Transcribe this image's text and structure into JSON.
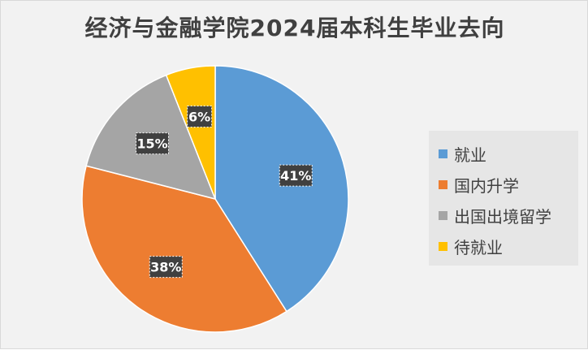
{
  "chart_data": {
    "type": "pie",
    "title": "经济与金融学院2024届本科生毕业去向",
    "categories": [
      "就业",
      "国内升学",
      "出国出境留学",
      "待就业"
    ],
    "values": [
      41,
      38,
      15,
      6
    ],
    "labels": [
      "41%",
      "38%",
      "15%",
      "6%"
    ],
    "colors": [
      "#5b9bd5",
      "#ed7d31",
      "#a5a5a5",
      "#ffc000"
    ],
    "legend_position": "right"
  }
}
